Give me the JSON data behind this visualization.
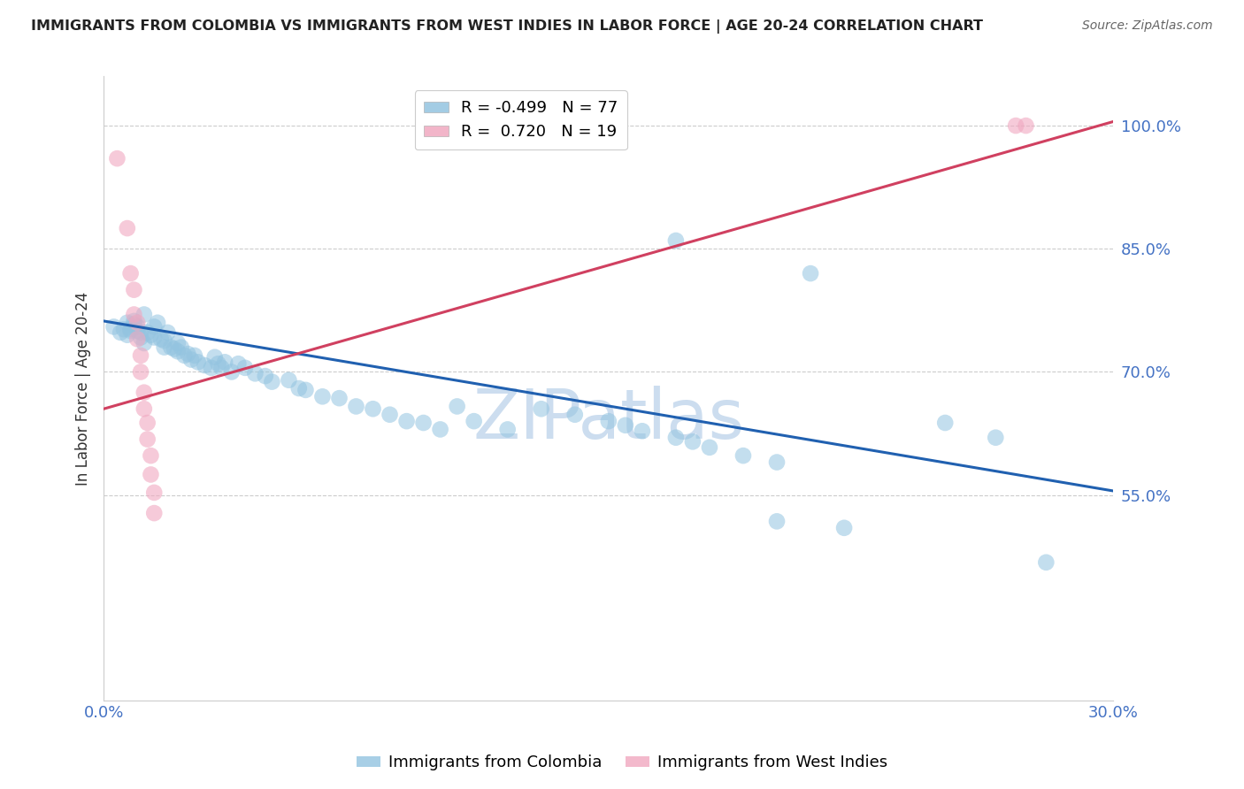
{
  "title": "IMMIGRANTS FROM COLOMBIA VS IMMIGRANTS FROM WEST INDIES IN LABOR FORCE | AGE 20-24 CORRELATION CHART",
  "source": "Source: ZipAtlas.com",
  "ylabel": "In Labor Force | Age 20-24",
  "xlim": [
    0.0,
    0.3
  ],
  "ylim": [
    0.3,
    1.06
  ],
  "yticks": [
    0.55,
    0.7,
    0.85,
    1.0
  ],
  "xticks": [
    0.0,
    0.3
  ],
  "xtick_labels": [
    "0.0%",
    "30.0%"
  ],
  "legend_entries": [
    {
      "label": "R = -0.499   N = 77",
      "color": "#a8c4e0"
    },
    {
      "label": "R =  0.720   N = 19",
      "color": "#f0b8c8"
    }
  ],
  "footer_labels": [
    "Immigrants from Colombia",
    "Immigrants from West Indies"
  ],
  "watermark": "ZIPatlas",
  "blue_scatter": [
    [
      0.003,
      0.755
    ],
    [
      0.005,
      0.748
    ],
    [
      0.006,
      0.752
    ],
    [
      0.007,
      0.76
    ],
    [
      0.007,
      0.745
    ],
    [
      0.008,
      0.752
    ],
    [
      0.008,
      0.75
    ],
    [
      0.009,
      0.758
    ],
    [
      0.009,
      0.762
    ],
    [
      0.01,
      0.75
    ],
    [
      0.01,
      0.755
    ],
    [
      0.011,
      0.748
    ],
    [
      0.011,
      0.742
    ],
    [
      0.012,
      0.77
    ],
    [
      0.012,
      0.735
    ],
    [
      0.013,
      0.748
    ],
    [
      0.014,
      0.745
    ],
    [
      0.015,
      0.755
    ],
    [
      0.015,
      0.742
    ],
    [
      0.016,
      0.76
    ],
    [
      0.017,
      0.74
    ],
    [
      0.018,
      0.738
    ],
    [
      0.018,
      0.73
    ],
    [
      0.019,
      0.748
    ],
    [
      0.02,
      0.73
    ],
    [
      0.021,
      0.728
    ],
    [
      0.022,
      0.735
    ],
    [
      0.022,
      0.725
    ],
    [
      0.023,
      0.73
    ],
    [
      0.024,
      0.72
    ],
    [
      0.025,
      0.722
    ],
    [
      0.026,
      0.715
    ],
    [
      0.027,
      0.72
    ],
    [
      0.028,
      0.712
    ],
    [
      0.03,
      0.708
    ],
    [
      0.032,
      0.705
    ],
    [
      0.033,
      0.718
    ],
    [
      0.034,
      0.71
    ],
    [
      0.035,
      0.705
    ],
    [
      0.036,
      0.712
    ],
    [
      0.038,
      0.7
    ],
    [
      0.04,
      0.71
    ],
    [
      0.042,
      0.705
    ],
    [
      0.045,
      0.698
    ],
    [
      0.048,
      0.695
    ],
    [
      0.05,
      0.688
    ],
    [
      0.055,
      0.69
    ],
    [
      0.058,
      0.68
    ],
    [
      0.06,
      0.678
    ],
    [
      0.065,
      0.67
    ],
    [
      0.07,
      0.668
    ],
    [
      0.075,
      0.658
    ],
    [
      0.08,
      0.655
    ],
    [
      0.085,
      0.648
    ],
    [
      0.09,
      0.64
    ],
    [
      0.095,
      0.638
    ],
    [
      0.1,
      0.63
    ],
    [
      0.105,
      0.658
    ],
    [
      0.11,
      0.64
    ],
    [
      0.12,
      0.63
    ],
    [
      0.13,
      0.655
    ],
    [
      0.14,
      0.648
    ],
    [
      0.15,
      0.64
    ],
    [
      0.155,
      0.635
    ],
    [
      0.16,
      0.628
    ],
    [
      0.17,
      0.62
    ],
    [
      0.175,
      0.615
    ],
    [
      0.18,
      0.608
    ],
    [
      0.19,
      0.598
    ],
    [
      0.2,
      0.59
    ],
    [
      0.17,
      0.86
    ],
    [
      0.21,
      0.82
    ],
    [
      0.25,
      0.638
    ],
    [
      0.265,
      0.62
    ],
    [
      0.2,
      0.518
    ],
    [
      0.22,
      0.51
    ],
    [
      0.28,
      0.468
    ]
  ],
  "pink_scatter": [
    [
      0.004,
      0.96
    ],
    [
      0.007,
      0.875
    ],
    [
      0.008,
      0.82
    ],
    [
      0.009,
      0.8
    ],
    [
      0.009,
      0.77
    ],
    [
      0.01,
      0.76
    ],
    [
      0.01,
      0.74
    ],
    [
      0.011,
      0.72
    ],
    [
      0.011,
      0.7
    ],
    [
      0.012,
      0.675
    ],
    [
      0.012,
      0.655
    ],
    [
      0.013,
      0.638
    ],
    [
      0.013,
      0.618
    ],
    [
      0.014,
      0.598
    ],
    [
      0.014,
      0.575
    ],
    [
      0.015,
      0.553
    ],
    [
      0.015,
      0.528
    ],
    [
      0.271,
      1.0
    ],
    [
      0.274,
      1.0
    ]
  ],
  "blue_line": [
    [
      0.0,
      0.762
    ],
    [
      0.3,
      0.555
    ]
  ],
  "pink_line": [
    [
      0.0,
      0.655
    ],
    [
      0.3,
      1.005
    ]
  ],
  "blue_color": "#93c4e0",
  "pink_color": "#f0a8c0",
  "blue_line_color": "#2060b0",
  "pink_line_color": "#d04060",
  "title_color": "#222222",
  "source_color": "#666666",
  "axis_color": "#4472C4",
  "grid_color": "#cccccc",
  "watermark_color": "#ccddef"
}
